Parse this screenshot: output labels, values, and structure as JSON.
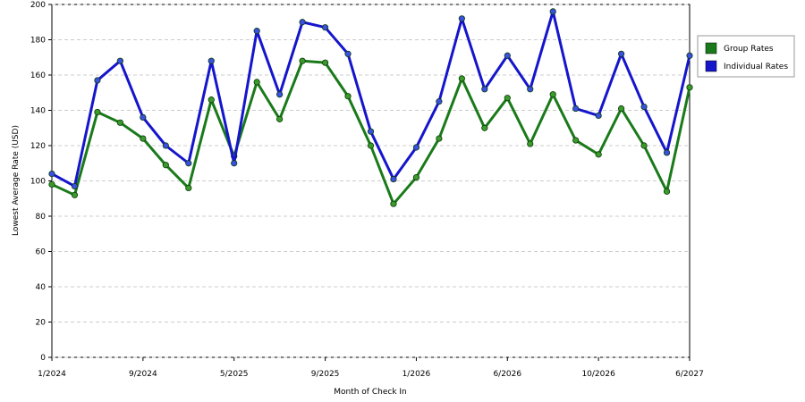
{
  "chart_data": {
    "type": "line",
    "x_label": "Month of Check In",
    "y_label": "Lowest Average Rate (USD)",
    "categories": [
      "1/2024",
      null,
      null,
      null,
      "9/2024",
      null,
      null,
      null,
      "5/2025",
      null,
      null,
      null,
      "9/2025",
      null,
      null,
      null,
      "1/2026",
      null,
      null,
      null,
      "6/2026",
      null,
      null,
      null,
      "10/2026",
      null,
      null,
      null,
      "6/2027"
    ],
    "series": [
      {
        "name": "Group Rates",
        "color": "#1a7a1a",
        "marker": "#3a9a2a",
        "values": [
          98,
          92,
          139,
          133,
          124,
          109,
          96,
          146,
          114,
          156,
          135,
          168,
          167,
          148,
          120,
          87,
          102,
          124,
          158,
          130,
          147,
          121,
          149,
          123,
          115,
          141,
          120,
          94,
          153
        ]
      },
      {
        "name": "Individual Rates",
        "color": "#1515cc",
        "marker": "#3a50e0",
        "values": [
          104,
          97,
          157,
          168,
          136,
          120,
          110,
          168,
          110,
          185,
          149,
          190,
          187,
          172,
          128,
          101,
          119,
          145,
          192,
          152,
          171,
          152,
          196,
          141,
          137,
          172,
          142,
          116,
          171
        ]
      }
    ],
    "ylim": [
      0,
      200
    ],
    "yticks": [
      0,
      20,
      40,
      60,
      80,
      100,
      120,
      140,
      160,
      180,
      200
    ],
    "grid": true,
    "legend": "right"
  }
}
